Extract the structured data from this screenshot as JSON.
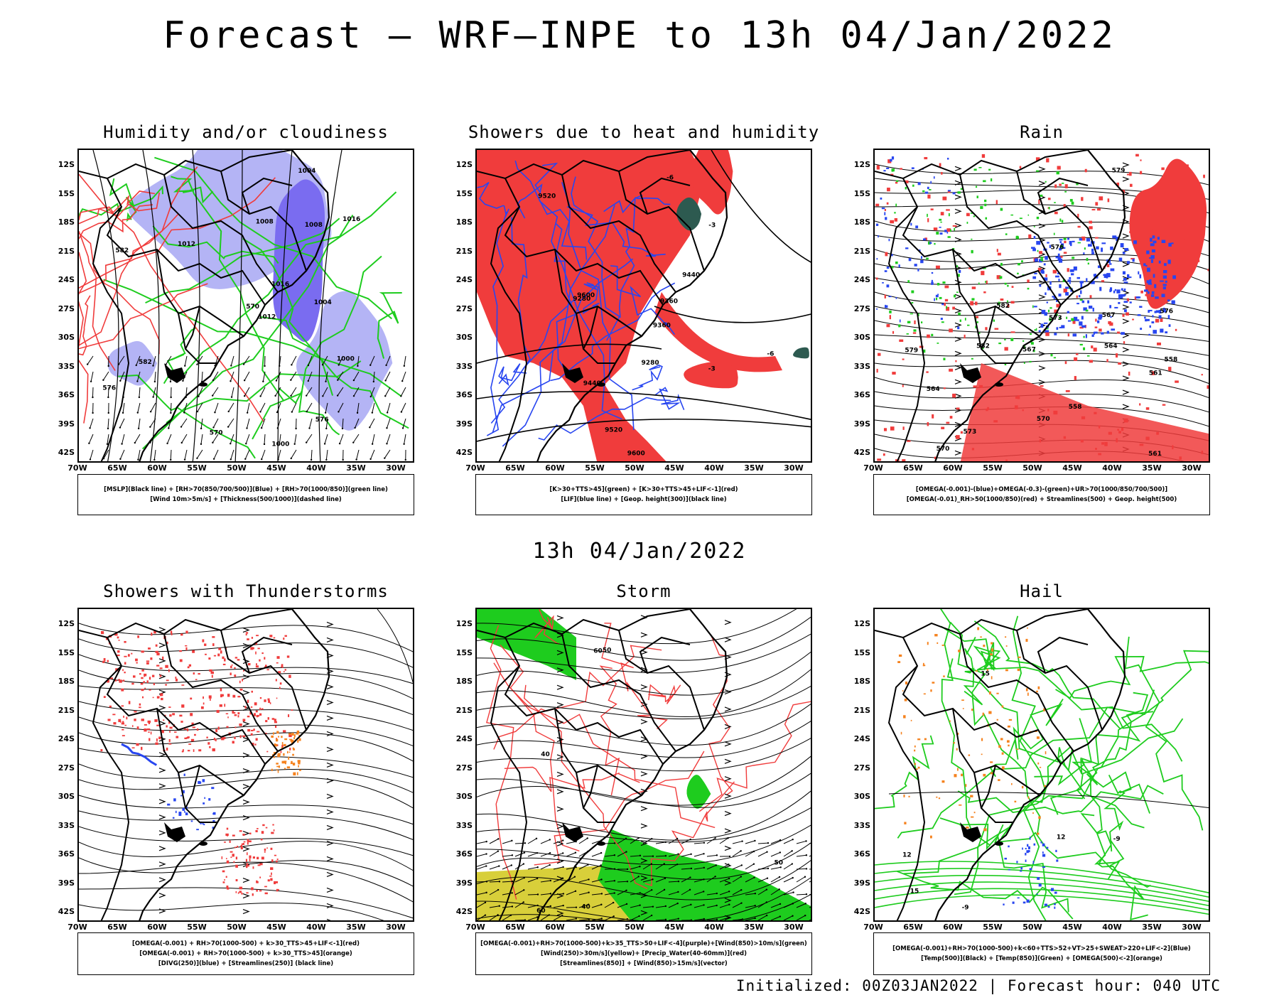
{
  "main_title": "Forecast – WRF–INPE to 13h 04/Jan/2022",
  "mid_title": "13h 04/Jan/2022",
  "footer": "Initialized: 00Z03JAN2022 | Forecast hour: 040 UTC",
  "lat_labels": [
    "12S",
    "15S",
    "18S",
    "21S",
    "24S",
    "27S",
    "30S",
    "33S",
    "36S",
    "39S",
    "42S"
  ],
  "lon_labels": [
    "70W",
    "65W",
    "60W",
    "55W",
    "50W",
    "45W",
    "40W",
    "35W",
    "30W"
  ],
  "panels": [
    {
      "title": "Humidity and/or cloudiness",
      "legend": [
        "[MSLP](Black line) + [RH>70(850/700/500)](Blue) + [RH>70(1000/850)](green line)",
        "[Wind 10m>5m/s] + [Thickness(500/1000)](dashed line)"
      ],
      "contour_labels": [
        "1012",
        "1008",
        "1004",
        "1016",
        "570",
        "576",
        "582",
        "1000"
      ]
    },
    {
      "title": "Showers due to heat and humidity",
      "legend": [
        "[K>30+TTS>45](green) + [K>30+TTS>45+LIF<-1](red)",
        "[LIF](blue line) + [Geop. height(300)](black line)"
      ],
      "contour_labels": [
        "9600",
        "9520",
        "9440",
        "9360",
        "9280",
        "-3",
        "-6"
      ]
    },
    {
      "title": "Rain",
      "legend": [
        "[OMEGA(-0.001)-(blue)+OMEGA(-0.3)-(green)+UR>70(1000/850/700/500)]",
        "[OMEGA(-0.01)_RH>50(1000/850)(red) + Streamlines(500) + Geop. height(500)"
      ],
      "contour_labels": [
        "582",
        "579",
        "576",
        "573",
        "570",
        "567",
        "564",
        "561",
        "558"
      ]
    },
    {
      "title": "Showers with Thunderstorms",
      "legend": [
        "[OMEGA(-0.001) + RH>70(1000-500) + k>30_TTS>45+LIF<-1](red)",
        "[OMEGA(-0.001) + RH>70(1000-500) + k>30_TTS>45](orange)",
        "[DIVG(250)](blue) + [Streamlines(250)] (black line)"
      ],
      "contour_labels": []
    },
    {
      "title": "Storm",
      "legend": [
        "[OMEGA(-0.001)+RH>70(1000-500)+k>35_TTS>50+LIF<-4](purple)+[Wind(850)>10m/s](green)",
        "[Wind(250)>30m/s](yellow)+ [Precip_Water(40-60mm)](red)",
        "[Streamlines(850)] + [Wind(850)>15m/s](vector)"
      ],
      "contour_labels": [
        "40",
        "50",
        "60"
      ]
    },
    {
      "title": "Hail",
      "legend": [
        "[OMEGA(-0.001)+RH>70(1000-500)+k<60+TTS>52+VT>25+SWEAT>220+LIF<-2](Blue)",
        "[Temp(500)](Black) + [Temp(850)](Green) + [OMEGA(500)<-2](orange)"
      ],
      "contour_labels": [
        "15",
        "12",
        "-9"
      ]
    }
  ],
  "colors": {
    "black": "#000000",
    "red": "#f03c3c",
    "green": "#1ecc1e",
    "blue": "#2846f0",
    "lavender": "#b4b4f5",
    "violet": "#7a6cf0",
    "orange": "#f5821e",
    "yellow": "#d8cf3a",
    "darkgreen": "#2d5a50",
    "purple": "#a020f0"
  }
}
